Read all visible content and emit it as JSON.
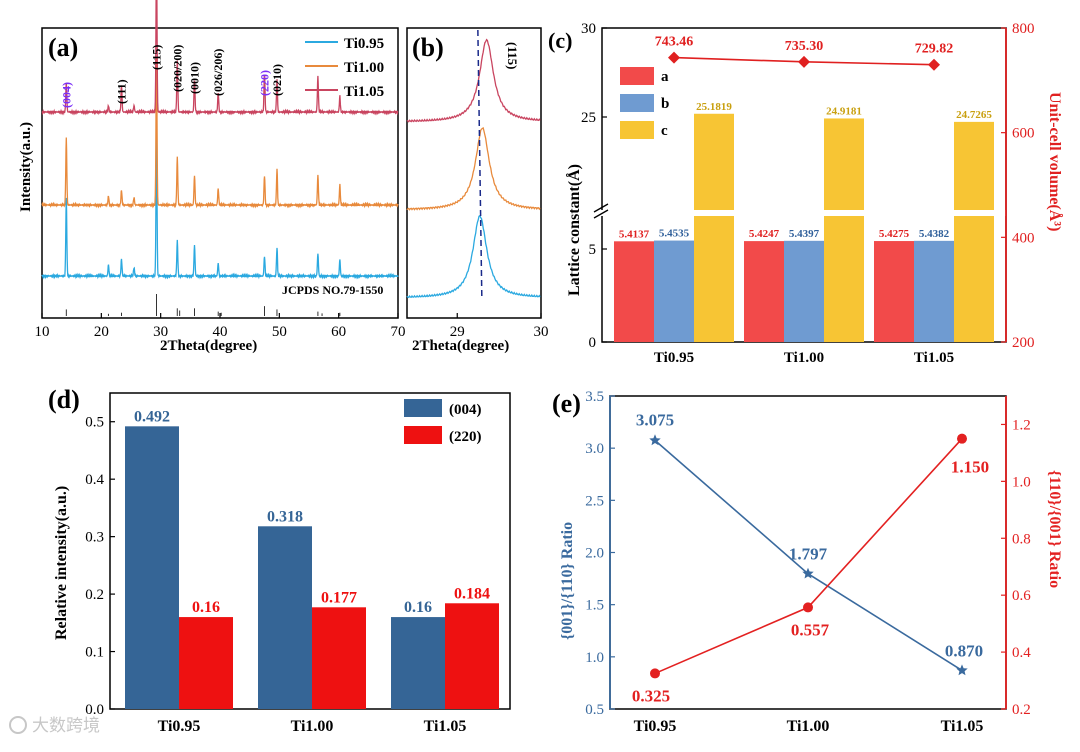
{
  "colors": {
    "ti095": "#2BA9E0",
    "ti100": "#E88A3C",
    "ti105": "#C94560",
    "ref": "#333333",
    "purple": "#7B2FF7",
    "a": "#F24A4A",
    "b": "#6F9BD1",
    "c": "#F7C534",
    "vol": "#E02020",
    "d004": "#356596",
    "d220": "#EE1111",
    "e_left": "#3A6A9E",
    "e_right": "#E32121"
  },
  "watermark": "大数跨境",
  "panels": {
    "a": {
      "label": "(a)",
      "xlabel": "2Theta(degree)",
      "ylabel": "Intensity(a.u.)",
      "x_ticks": [
        "10",
        "20",
        "30",
        "40",
        "50",
        "60",
        "70"
      ],
      "legend": [
        "Ti0.95",
        "Ti1.00",
        "Ti1.05"
      ],
      "reference_label": "JCPDS NO.79-1550",
      "peak_labels": [
        "(004)",
        "(111)",
        "(115)",
        "(020/200)",
        "(0010)",
        "(026/206)",
        "(220)",
        "(0210)"
      ]
    },
    "b": {
      "label": "(b)",
      "xlabel": "2Theta(degree)",
      "x_ticks": [
        "29",
        "30"
      ],
      "peak_label": "(115)"
    },
    "c": {
      "label": "(c)",
      "ylabel_left": "Lattice constant(Å)",
      "ylabel_right": "Unit-cell volume(Å³)",
      "legend": [
        "a",
        "b",
        "c"
      ]
    },
    "d": {
      "label": "(d)",
      "ylabel": "Relative intensity(a.u.)",
      "legend": [
        "(004)",
        "(220)"
      ]
    },
    "e": {
      "label": "(e)",
      "ylabel_left": "{001}/{110} Ratio",
      "ylabel_right": "{110}/{001} Ratio"
    }
  },
  "chart_data": [
    {
      "type": "line",
      "panel": "a",
      "xlabel": "2Theta(degree)",
      "ylabel": "Intensity(a.u.)",
      "xlim": [
        10,
        70
      ],
      "series": [
        {
          "name": "Ti0.95",
          "peaks": [
            [
              14.1,
              0.55
            ],
            [
              21.2,
              0.08
            ],
            [
              23.4,
              0.12
            ],
            [
              25.5,
              0.06
            ],
            [
              29.3,
              1.0
            ],
            [
              32.8,
              0.25
            ],
            [
              35.7,
              0.22
            ],
            [
              39.7,
              0.09
            ],
            [
              47.5,
              0.14
            ],
            [
              49.6,
              0.2
            ],
            [
              56.5,
              0.16
            ],
            [
              60.2,
              0.12
            ]
          ]
        },
        {
          "name": "Ti1.00",
          "peaks": [
            [
              14.1,
              0.45
            ],
            [
              21.2,
              0.06
            ],
            [
              23.4,
              0.1
            ],
            [
              25.5,
              0.05
            ],
            [
              29.3,
              1.0
            ],
            [
              32.8,
              0.32
            ],
            [
              35.7,
              0.2
            ],
            [
              39.7,
              0.11
            ],
            [
              47.5,
              0.2
            ],
            [
              49.6,
              0.24
            ],
            [
              56.5,
              0.2
            ],
            [
              60.2,
              0.14
            ]
          ]
        },
        {
          "name": "Ti1.05",
          "peaks": [
            [
              14.1,
              0.18
            ],
            [
              21.2,
              0.04
            ],
            [
              23.4,
              0.17
            ],
            [
              25.5,
              0.04
            ],
            [
              29.3,
              1.0
            ],
            [
              32.8,
              0.32
            ],
            [
              35.7,
              0.2
            ],
            [
              39.7,
              0.12
            ],
            [
              47.5,
              0.24
            ],
            [
              49.6,
              0.2
            ],
            [
              56.5,
              0.22
            ],
            [
              60.2,
              0.1
            ]
          ]
        }
      ],
      "reference_lines": [
        [
          14.1,
          0.3
        ],
        [
          21.2,
          0.1
        ],
        [
          23.4,
          0.15
        ],
        [
          29.3,
          1.0
        ],
        [
          32.8,
          0.35
        ],
        [
          33.2,
          0.25
        ],
        [
          35.7,
          0.35
        ],
        [
          39.7,
          0.2
        ],
        [
          40.2,
          0.15
        ],
        [
          47.5,
          0.45
        ],
        [
          49.6,
          0.3
        ],
        [
          56.5,
          0.2
        ],
        [
          57.2,
          0.12
        ],
        [
          60.2,
          0.15
        ]
      ]
    },
    {
      "type": "line",
      "panel": "b",
      "xlabel": "2Theta(degree)",
      "xlim": [
        28.4,
        30
      ],
      "series": [
        {
          "name": "Ti0.95",
          "center": 29.27
        },
        {
          "name": "Ti1.00",
          "center": 29.3
        },
        {
          "name": "Ti1.05",
          "center": 29.35
        }
      ],
      "reference_x": 29.27
    },
    {
      "type": "bar",
      "panel": "c",
      "categories": [
        "Ti0.95",
        "Ti1.00",
        "Ti1.05"
      ],
      "series": [
        {
          "name": "a",
          "values": [
            5.4137,
            5.4247,
            5.4275
          ],
          "labels": [
            "5.4137",
            "5.4247",
            "5.4275"
          ]
        },
        {
          "name": "b",
          "values": [
            5.4535,
            5.4397,
            5.4382
          ],
          "labels": [
            "5.4535",
            "5.4397",
            "5.4382"
          ]
        },
        {
          "name": "c",
          "values": [
            25.1819,
            24.9181,
            24.7265
          ],
          "labels": [
            "25.1819",
            "24.9181",
            "24.7265"
          ]
        }
      ],
      "volume": {
        "values": [
          743.46,
          735.3,
          729.82
        ],
        "labels": [
          "743.46",
          "735.30",
          "729.82"
        ]
      },
      "ylabel": "Lattice constant(Å)",
      "y2label": "Unit-cell volume(Å³)",
      "y_ticks_left": [
        "0",
        "5",
        "25",
        "30"
      ],
      "y_ticks_right": [
        "200",
        "400",
        "600",
        "800"
      ],
      "ylim_right": [
        200,
        800
      ]
    },
    {
      "type": "bar",
      "panel": "d",
      "categories": [
        "Ti0.95",
        "Ti1.00",
        "Ti1.05"
      ],
      "series": [
        {
          "name": "(004)",
          "values": [
            0.492,
            0.318,
            0.16
          ],
          "labels": [
            "0.492",
            "0.318",
            "0.16"
          ]
        },
        {
          "name": "(220)",
          "values": [
            0.16,
            0.177,
            0.184
          ],
          "labels": [
            "0.16",
            "0.177",
            "0.184"
          ]
        }
      ],
      "ylabel": "Relative intensity(a.u.)",
      "ylim": [
        0.0,
        0.55
      ],
      "y_ticks": [
        "0.0",
        "0.1",
        "0.2",
        "0.3",
        "0.4",
        "0.5"
      ]
    },
    {
      "type": "line",
      "panel": "e",
      "categories": [
        "Ti0.95",
        "Ti1.00",
        "Ti1.05"
      ],
      "series": [
        {
          "name": "{001}/{110} Ratio",
          "values": [
            3.075,
            1.797,
            0.87
          ],
          "labels": [
            "3.075",
            "1.797",
            "0.870"
          ],
          "axis": "left"
        },
        {
          "name": "{110}/{001} Ratio",
          "values": [
            0.325,
            0.557,
            1.15
          ],
          "labels": [
            "0.325",
            "0.557",
            "1.150"
          ],
          "axis": "right"
        }
      ],
      "ylim_left": [
        0.5,
        3.5
      ],
      "y_ticks_left": [
        "0.5",
        "1.0",
        "1.5",
        "2.0",
        "2.5",
        "3.0",
        "3.5"
      ],
      "ylim_right": [
        0.2,
        1.3
      ],
      "y_ticks_right": [
        "0.2",
        "0.4",
        "0.6",
        "0.8",
        "1.0",
        "1.2"
      ]
    }
  ]
}
